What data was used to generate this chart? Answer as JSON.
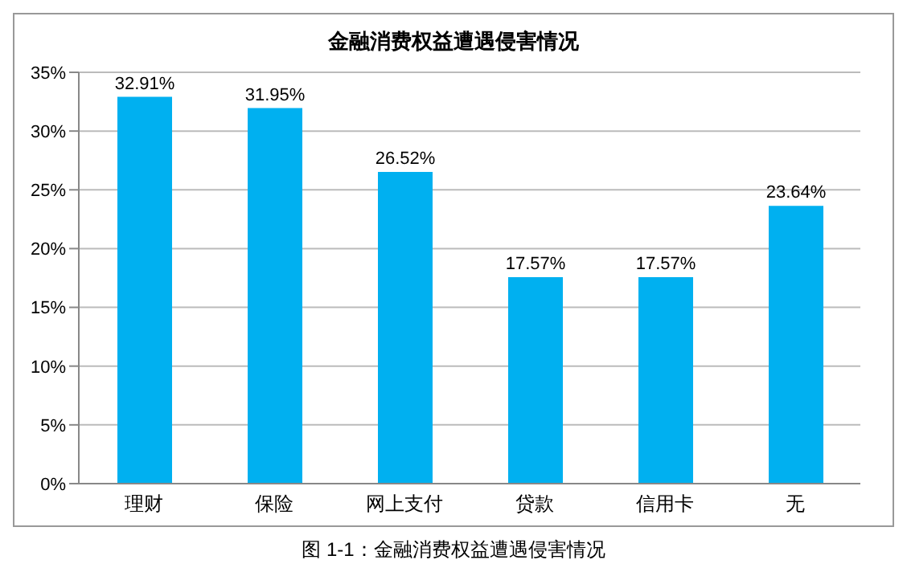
{
  "chart_data": {
    "type": "bar",
    "title": "金融消费权益遭遇侵害情况",
    "categories": [
      "理财",
      "保险",
      "网上支付",
      "贷款",
      "信用卡",
      "无"
    ],
    "values": [
      32.91,
      31.95,
      26.52,
      17.57,
      17.57,
      23.64
    ],
    "value_labels": [
      "32.91%",
      "31.95%",
      "26.52%",
      "17.57%",
      "17.57%",
      "23.64%"
    ],
    "color": "#00b0f0",
    "ylim": [
      0,
      35
    ],
    "yticks": [
      {
        "value": 0,
        "label": "0%"
      },
      {
        "value": 5,
        "label": "5%"
      },
      {
        "value": 10,
        "label": "10%"
      },
      {
        "value": 15,
        "label": "15%"
      },
      {
        "value": 20,
        "label": "20%"
      },
      {
        "value": 25,
        "label": "25%"
      },
      {
        "value": 30,
        "label": "30%"
      },
      {
        "value": 35,
        "label": "35%"
      }
    ],
    "grid": "y",
    "annotations": [
      "图 1-1：金融消费权益遭遇侵害情况"
    ]
  }
}
